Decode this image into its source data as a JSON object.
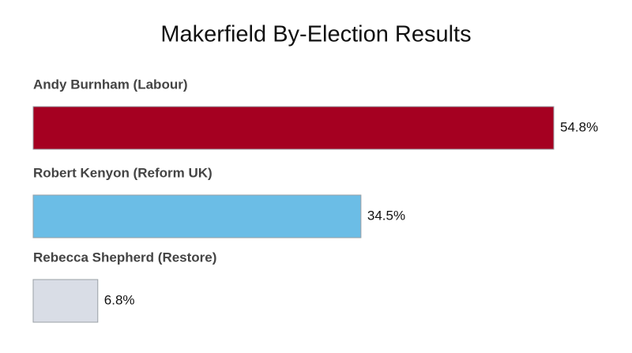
{
  "chart_data": {
    "type": "hbar",
    "title": "Makerfield By-Election Results",
    "categories": [
      "Andy Burnham (Labour)",
      "Robert Kenyon (Reform UK)",
      "Rebecca Shepherd (Restore)"
    ],
    "values": [
      54.8,
      34.5,
      6.8
    ],
    "value_labels": [
      "54.8%",
      "34.5%",
      "6.8%"
    ],
    "colors": [
      "#a50021",
      "#6bbde6",
      "#d9dde6"
    ]
  }
}
